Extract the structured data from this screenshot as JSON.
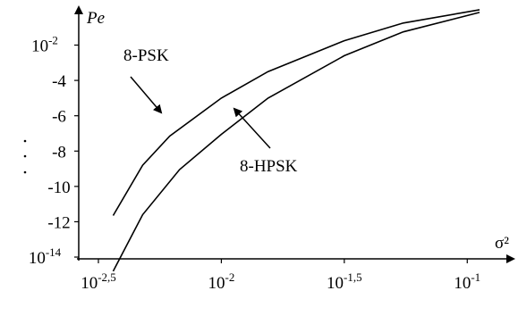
{
  "chart_data": {
    "type": "line",
    "y_label": "Pe",
    "x_label": "σ²",
    "xlim": [
      -2.58,
      -0.83
    ],
    "ylim": [
      -14.1,
      0.3
    ],
    "xticks": [
      {
        "value": -2.5,
        "label": "-2,5",
        "base": "10"
      },
      {
        "value": -2,
        "label": "-2",
        "base": "10"
      },
      {
        "value": -1.5,
        "label": "-1,5",
        "base": "10"
      },
      {
        "value": -1,
        "label": "-1",
        "base": "10"
      }
    ],
    "yticks": [
      {
        "value": -2,
        "label": "-2",
        "base": "10"
      },
      -4,
      -6,
      -8,
      -10,
      -12,
      {
        "value": -14,
        "label": "-14",
        "base": "10"
      }
    ],
    "series": [
      {
        "name": "8-PSK",
        "color": "#000000",
        "x": [
          -2.44,
          -2.32,
          -2.21,
          -2.0,
          -1.81,
          -1.5,
          -1.26,
          -0.95
        ],
        "values": [
          -11.65,
          -8.8,
          -7.15,
          -5.0,
          -3.5,
          -1.75,
          -0.75,
          0.0
        ]
      },
      {
        "name": "8-HPSK",
        "color": "#000000",
        "x": [
          -2.44,
          -2.32,
          -2.17,
          -2.0,
          -1.81,
          -1.5,
          -1.26,
          -0.95
        ],
        "values": [
          -14.8,
          -11.6,
          -9.05,
          -7.05,
          -5.0,
          -2.6,
          -1.25,
          -0.15
        ]
      }
    ]
  }
}
